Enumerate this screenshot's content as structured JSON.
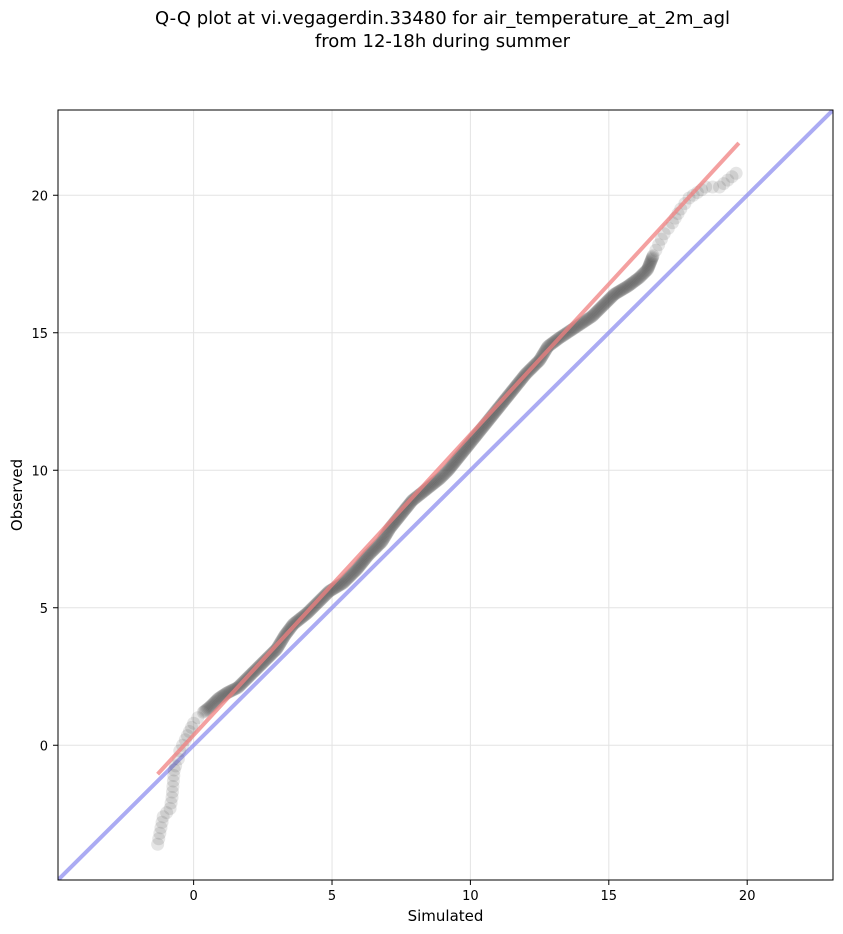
{
  "chart_data": {
    "type": "scatter",
    "title_lines": [
      "Q-Q plot at vi.vegagerdin.33480 for air_temperature_at_2m_agl",
      "from 12-18h during summer"
    ],
    "xlabel": "Simulated",
    "ylabel": "Observed",
    "xlim": [
      -4.9,
      23.1
    ],
    "ylim": [
      -4.9,
      23.1
    ],
    "xticks": [
      0,
      5,
      10,
      15,
      20
    ],
    "yticks": [
      0,
      5,
      10,
      15,
      20
    ],
    "grid": true,
    "series": [
      {
        "kind": "quantiles",
        "color": "#000000",
        "points": [
          [
            -1.3,
            -3.6
          ],
          [
            -1.1,
            -2.6
          ],
          [
            -0.85,
            -2.3
          ],
          [
            -0.78,
            -1.9
          ],
          [
            -0.7,
            -0.9
          ],
          [
            -0.65,
            -0.75
          ],
          [
            -0.55,
            -0.5
          ],
          [
            -0.5,
            -0.2
          ],
          [
            -0.4,
            0.0
          ],
          [
            -0.3,
            0.2
          ],
          [
            -0.15,
            0.5
          ],
          [
            0.0,
            0.8
          ],
          [
            0.15,
            1.0
          ],
          [
            0.35,
            1.2
          ],
          [
            0.6,
            1.4
          ],
          [
            0.9,
            1.7
          ],
          [
            1.2,
            1.9
          ],
          [
            1.6,
            2.1
          ],
          [
            2.0,
            2.5
          ],
          [
            2.5,
            3.0
          ],
          [
            3.0,
            3.5
          ],
          [
            3.3,
            4.0
          ],
          [
            3.6,
            4.4
          ],
          [
            4.1,
            4.8
          ],
          [
            4.5,
            5.2
          ],
          [
            4.9,
            5.6
          ],
          [
            5.4,
            5.9
          ],
          [
            5.9,
            6.4
          ],
          [
            6.3,
            6.9
          ],
          [
            6.8,
            7.4
          ],
          [
            7.1,
            7.9
          ],
          [
            7.5,
            8.4
          ],
          [
            7.9,
            8.9
          ],
          [
            8.4,
            9.3
          ],
          [
            8.9,
            9.7
          ],
          [
            9.2,
            10.0
          ],
          [
            9.6,
            10.5
          ],
          [
            10.0,
            11.0
          ],
          [
            10.4,
            11.5
          ],
          [
            10.8,
            12.0
          ],
          [
            11.2,
            12.5
          ],
          [
            11.6,
            13.0
          ],
          [
            12.0,
            13.5
          ],
          [
            12.5,
            14.0
          ],
          [
            12.8,
            14.5
          ],
          [
            13.2,
            14.8
          ],
          [
            13.8,
            15.2
          ],
          [
            14.4,
            15.6
          ],
          [
            14.8,
            16.0
          ],
          [
            15.2,
            16.4
          ],
          [
            15.7,
            16.7
          ],
          [
            16.1,
            17.0
          ],
          [
            16.4,
            17.3
          ],
          [
            16.6,
            17.8
          ],
          [
            16.8,
            18.2
          ],
          [
            17.0,
            18.6
          ],
          [
            17.3,
            19.0
          ],
          [
            17.6,
            19.5
          ],
          [
            17.9,
            19.9
          ],
          [
            18.2,
            20.1
          ],
          [
            18.5,
            20.3
          ],
          [
            19.0,
            20.3
          ],
          [
            19.6,
            20.8
          ]
        ]
      },
      {
        "kind": "fit",
        "color": "#f08080",
        "points": [
          [
            -1.3,
            -1.05
          ],
          [
            19.7,
            21.9
          ]
        ]
      },
      {
        "kind": "identity",
        "color": "#8888ee",
        "points": [
          [
            -4.9,
            -4.9
          ],
          [
            23.1,
            23.1
          ]
        ]
      }
    ]
  }
}
